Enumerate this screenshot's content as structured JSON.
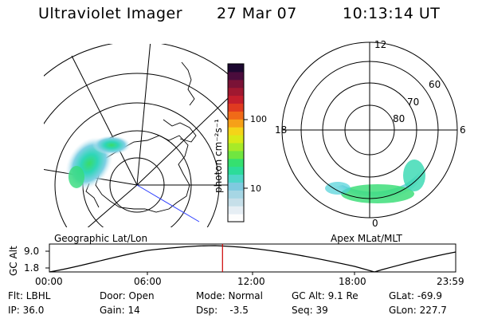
{
  "header": {
    "title": "Ultraviolet Imager",
    "date": "27 Mar 07",
    "time": "10:13:14 UT"
  },
  "colorbar": {
    "unit_label": "photon cm⁻²s⁻¹",
    "ticks": [
      "100",
      "10"
    ],
    "colors": [
      "#fdfdfd",
      "#e6eef4",
      "#c6dfe9",
      "#a6d6e4",
      "#7fcadf",
      "#4fd6c8",
      "#2cdc9a",
      "#35e070",
      "#70e640",
      "#a8ea28",
      "#d8ea18",
      "#f4d418",
      "#f6a018",
      "#f06a18",
      "#e03a20",
      "#c41e2c",
      "#a01830",
      "#7a1236",
      "#4a0c3c",
      "#1c0830"
    ]
  },
  "left_map": {
    "label": "Geographic Lat/Lon"
  },
  "right_map": {
    "label": "Apex MLat/MLT",
    "mlt_labels": [
      "12",
      "18",
      "6",
      "0"
    ],
    "lat_labels": [
      "60",
      "70",
      "80"
    ]
  },
  "alt_plot": {
    "ylabel": "GC Alt",
    "yticks": [
      "9.0",
      "1.8"
    ],
    "xticks": [
      "00:00",
      "06:00",
      "12:00",
      "18:00",
      "23:59"
    ],
    "marker_time": "10:13:14",
    "marker_color": "#cc0000"
  },
  "info": {
    "flt": "Flt: LBHL",
    "ip": "IP: 36.0",
    "door": "Door: Open",
    "gain": "Gain: 14",
    "mode": "Mode: Normal",
    "dsp": "Dsp:    -3.5",
    "gc_alt": "GC Alt: 9.1 Re",
    "seq": "Seq: 39",
    "glat": "GLat: -69.9",
    "glon": "GLon: 227.7"
  }
}
